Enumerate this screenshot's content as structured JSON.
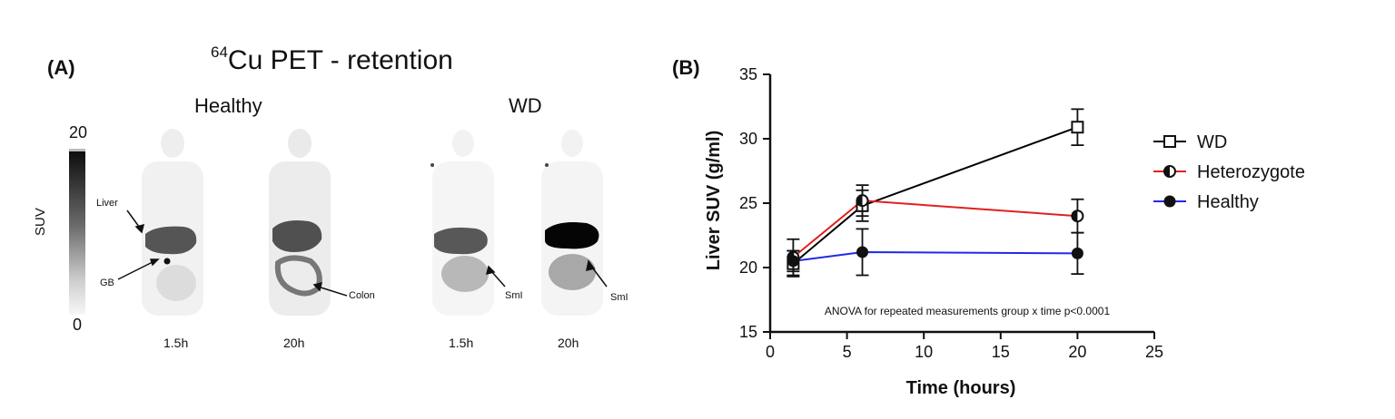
{
  "panel_a": {
    "label": "(A)",
    "title_superscript": "64",
    "title_main": "Cu PET - retention",
    "groups": [
      "Healthy",
      "WD"
    ],
    "time_labels": [
      "1.5h",
      "20h",
      "1.5h",
      "20h"
    ],
    "colorbar": {
      "max": "20",
      "min": "0",
      "label": "SUV"
    },
    "annotations": {
      "liver": "Liver",
      "gb": "GB",
      "colon": "Colon",
      "sml1": "SmI",
      "sml2": "SmI"
    }
  },
  "panel_b": {
    "label": "(B)"
  },
  "chart_data": {
    "type": "line",
    "xlabel": "Time (hours)",
    "ylabel": "Liver SUV (g/ml)",
    "xlim": [
      0,
      25
    ],
    "ylim": [
      15,
      35
    ],
    "xticks": [
      0,
      5,
      10,
      15,
      20,
      25
    ],
    "yticks": [
      15,
      20,
      25,
      30,
      35
    ],
    "annotation": "ANOVA for repeated measurements group x time p<0.0001",
    "legend_position": "right",
    "x": [
      1.5,
      6,
      20
    ],
    "series": [
      {
        "name": "WD",
        "color": "#000000",
        "marker": "square-open",
        "values": [
          20.3,
          24.8,
          30.9
        ],
        "errors": [
          1.0,
          1.2,
          1.4
        ]
      },
      {
        "name": "Heterozygote",
        "color": "#e02020",
        "marker": "circle-half",
        "values": [
          20.8,
          25.2,
          24.0
        ],
        "errors": [
          1.4,
          1.2,
          1.3
        ]
      },
      {
        "name": "Healthy",
        "color": "#1f2ae8",
        "marker": "circle-filled",
        "values": [
          20.5,
          21.2,
          21.1
        ],
        "errors": [
          0.8,
          1.8,
          1.6
        ]
      }
    ]
  }
}
